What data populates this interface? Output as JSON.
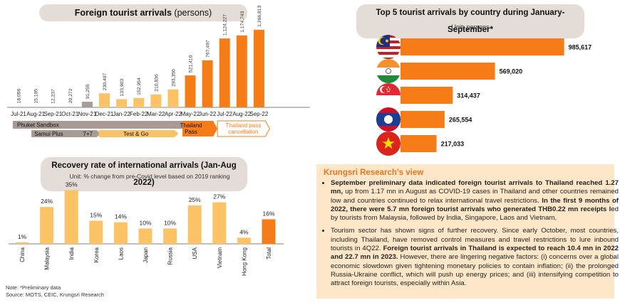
{
  "left_chart": {
    "title_bold": "Foreign tourist arrivals",
    "title_light": " (persons)"
  },
  "recovery": {
    "title": "Recovery rate of international arrivals (Jan-Aug 2022)",
    "subtitle": "Unit: % change from pre-Covid level based on 2019 ranking"
  },
  "top5": {
    "title": "Top 5 tourist arrivals by country during January-September*",
    "subtitle": "Unit: persons"
  },
  "notes": {
    "line1": "Note: *Preliminary data",
    "line2": "Source: MOTS, CEIC, Krungsri Research"
  },
  "view": {
    "title": "Krungsri Research’s view",
    "bullet1_a": "September preliminary data indicated foreign tourist arrivals to Thailand reached 1.27 mn,",
    "bullet1_b": " up from 1.17 mn in August as COVID-19 cases in Thailand and other countries remained low and countries continued to relax international travel restrictions. ",
    "bullet1_c": "In the first 9 months of 2022, there were 5.7 mn foreign tourist arrivals who generated THB0.22 mn receipts l",
    "bullet1_d": "ed by tourists from Malaysia, followed by India, Singapore, Laos and Vietnam.",
    "bullet2_a": "Tourism sector has shown signs of further recovery. Since early October, most countries, including Thailand, have removed control measures and travel restrictions to lure inbound tourists in 4Q22. ",
    "bullet2_b": "Foreign tourist arrivals in Thailand is expected to reach 10.4 mn in 2022 and 22.7 mn in 2023.",
    "bullet2_c": " However, there are lingering negative factors: (i) concerns over a global economic slowdown given tightening monetary policies to contain inflation; (ii) the prolonged Russia-Ukraine conflict, which will push up energy prices; and (iii) intensifying competition to attract foreign tourists, especially within Asia."
  },
  "colors": {
    "dark_orange": "#f57c16",
    "light_orange": "#fcc266",
    "gray_brown": "#a89a94",
    "pill_bg": "#e3dcd7"
  },
  "chart_data": [
    {
      "type": "bar",
      "name": "arrivals",
      "categories": [
        "Jul-21",
        "Aug-21",
        "Sep-21",
        "Oct-21",
        "Nov-21",
        "Dec-21",
        "Jan-22",
        "Feb-22",
        "Mar-22",
        "Apr-22",
        "May-22",
        "Jun-22",
        "Jul-22",
        "Aug-22",
        "Sep-22"
      ],
      "values": [
        18056,
        15105,
        12237,
        20272,
        91255,
        230497,
        133903,
        152954,
        210836,
        293350,
        521410,
        767497,
        1124227,
        1174743,
        1266813
      ],
      "labels": [
        "18,056",
        "15,105",
        "12,237",
        "20,272",
        "91,255",
        "230,497",
        "133,903",
        "152,954",
        "210,836",
        "293,350",
        "521,410",
        "767,497",
        "1,124,227",
        "1,174,743",
        "1,266,813"
      ],
      "bar_colors": [
        "none",
        "none",
        "none",
        "none",
        "gray",
        "light",
        "light",
        "light",
        "light",
        "light",
        "dark",
        "dark",
        "dark",
        "dark",
        "dark"
      ],
      "ylim": [
        0,
        1300000
      ],
      "phases": [
        {
          "label": "Phuket Sandbox",
          "style": "gray"
        },
        {
          "label": "Samui Plus",
          "style": "gray"
        },
        {
          "label": "7+7",
          "style": "gray"
        },
        {
          "label": "Test & Go",
          "style": "light"
        },
        {
          "label": "Thailand Pass",
          "style": "dark"
        },
        {
          "label": "Thailand pass cancellation",
          "style": "outline"
        }
      ]
    },
    {
      "type": "bar",
      "name": "recovery",
      "categories": [
        "China",
        "Malaysia",
        "India",
        "Korea",
        "Laos",
        "Japan",
        "Russia",
        "USA",
        "Vietnam",
        "Hong Kong",
        "Total"
      ],
      "values": [
        1,
        24,
        35,
        15,
        14,
        10,
        10,
        25,
        27,
        4,
        16
      ],
      "labels": [
        "1%",
        "24%",
        "35%",
        "15%",
        "14%",
        "10%",
        "10%",
        "25%",
        "27%",
        "4%",
        "16%"
      ],
      "ylim": [
        0,
        37
      ]
    },
    {
      "type": "bar",
      "orientation": "horizontal",
      "name": "top5",
      "categories": [
        "Malaysia",
        "India",
        "Singapore",
        "Laos",
        "Vietnam"
      ],
      "values": [
        985617,
        569020,
        314437,
        265554,
        217033
      ],
      "labels": [
        "985,617",
        "569,020",
        "314,437",
        "265,554",
        "217,033"
      ],
      "xlim": [
        0,
        1000000
      ]
    }
  ]
}
